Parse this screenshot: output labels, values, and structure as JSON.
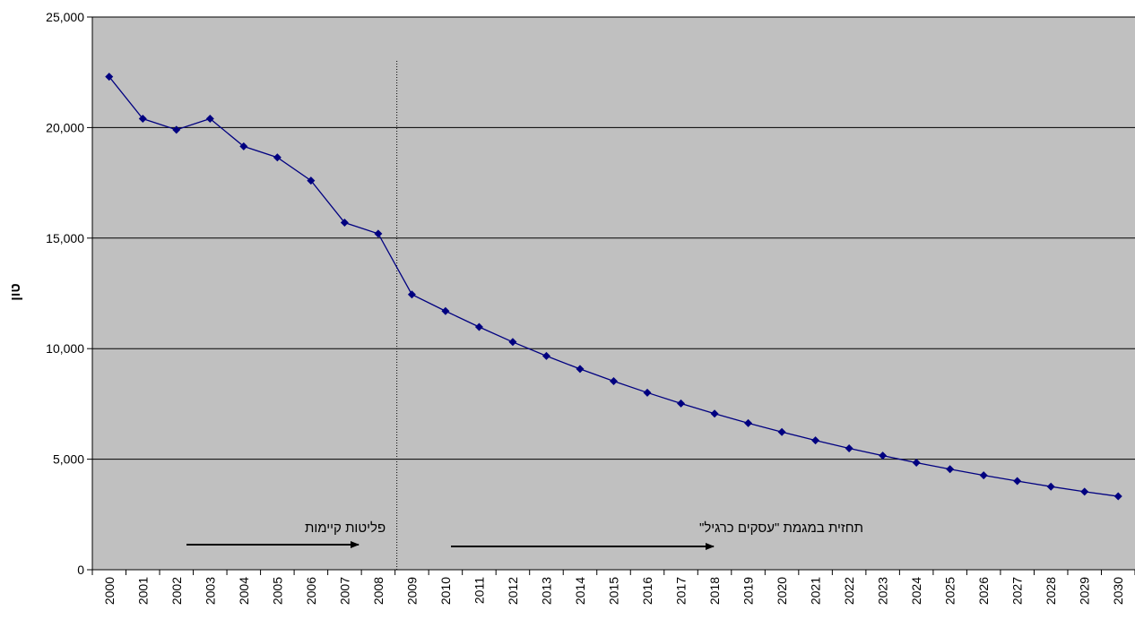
{
  "chart_data": {
    "type": "line",
    "title": "",
    "xlabel": "",
    "ylabel": "טון",
    "ylim": [
      0,
      25000
    ],
    "y_ticks": [
      "0",
      "5,000",
      "10,000",
      "15,000",
      "20,000",
      "25,000"
    ],
    "grid": "horizontal",
    "plot_background": "#c0c0c0",
    "series_color": "#000080",
    "x": [
      2000,
      2001,
      2002,
      2003,
      2004,
      2005,
      2006,
      2007,
      2008,
      2009,
      2010,
      2011,
      2012,
      2013,
      2014,
      2015,
      2016,
      2017,
      2018,
      2019,
      2020,
      2021,
      2022,
      2023,
      2024,
      2025,
      2026,
      2027,
      2028,
      2029,
      2030
    ],
    "series": [
      {
        "values": [
          22300,
          20400,
          19900,
          20400,
          19150,
          18650,
          17600,
          15700,
          15200,
          12450,
          11700,
          10980,
          10300,
          9670,
          9080,
          8530,
          8010,
          7520,
          7060,
          6630,
          6230,
          5850,
          5490,
          5160,
          4840,
          4550,
          4270,
          4010,
          3760,
          3530,
          3320
        ]
      }
    ],
    "divider_x": 2009,
    "annotations": [
      {
        "text": "פליטות קיימות"
      },
      {
        "text": "תחזית במגמת \"עסקים כרגיל\""
      }
    ]
  }
}
